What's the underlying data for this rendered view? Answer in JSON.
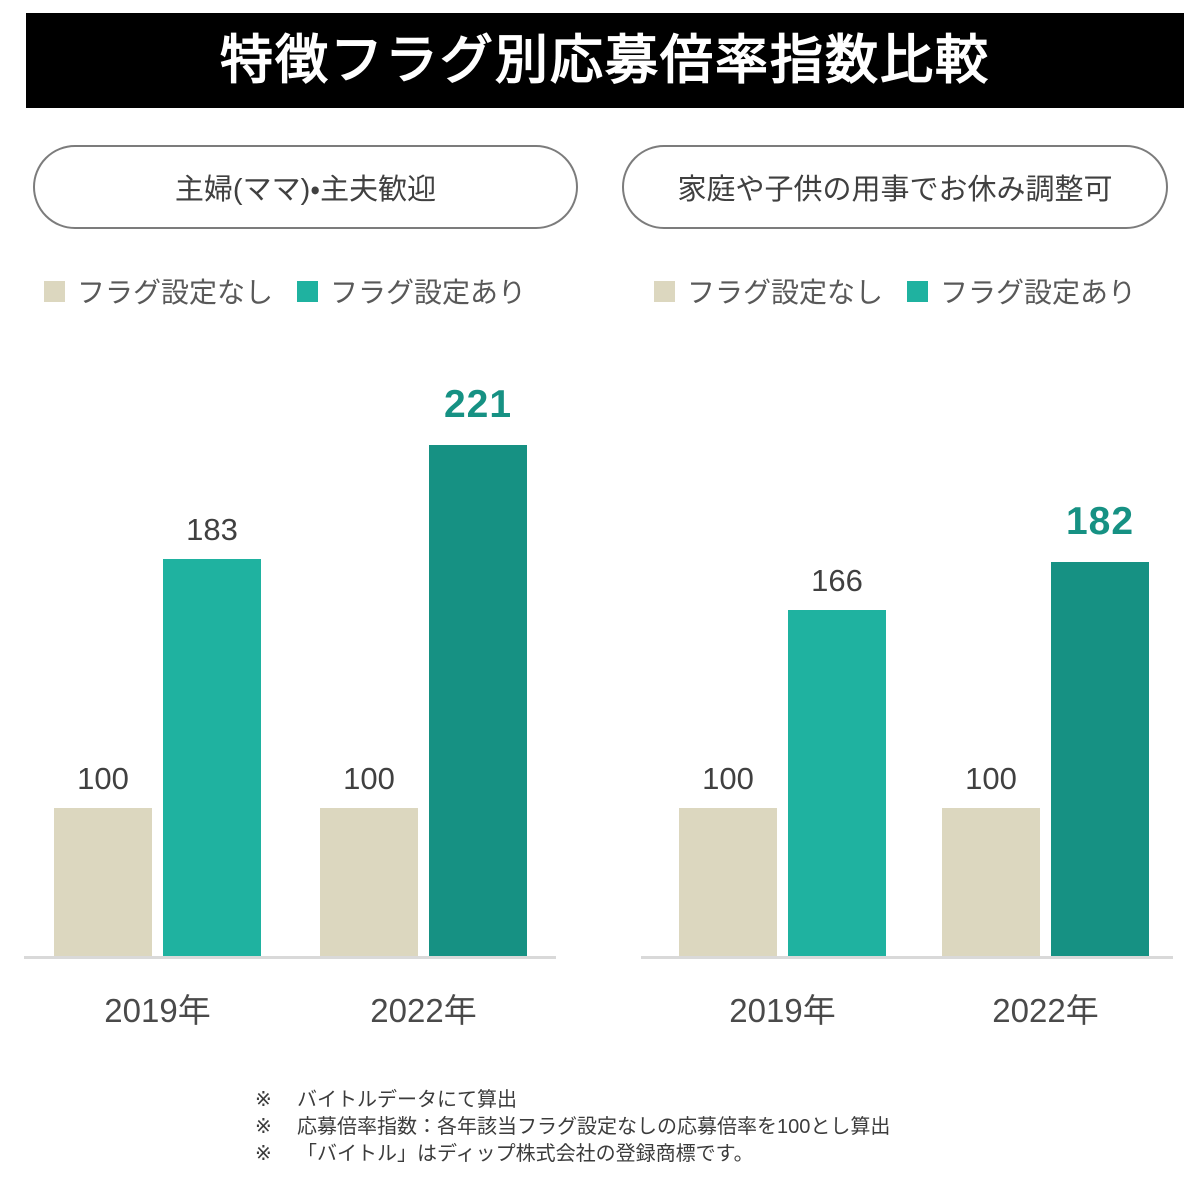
{
  "title": "特徴フラグ別応募倍率指数比較",
  "colors": {
    "banner_bg": "#000000",
    "banner_text": "#ffffff",
    "no_flag_beige": "#dcd7bf",
    "with_flag_teal": "#1fb2a0",
    "with_flag_teal_dark": "#169183",
    "value_label_gray": "#404040",
    "axis_line": "#d9d9d9",
    "pill_border": "#7c7c7c",
    "legend_text": "#595959",
    "footnote_text": "#3c3c3c"
  },
  "legend": {
    "items": [
      {
        "label": "フラグ設定なし",
        "color": "#dcd7bf"
      },
      {
        "label": "フラグ設定あり",
        "color": "#1fb2a0"
      }
    ]
  },
  "chart_data": [
    {
      "type": "bar",
      "title": "主婦(ママ)・主夫歓迎",
      "categories": [
        "2019年",
        "2022年"
      ],
      "series": [
        {
          "name": "フラグ設定なし",
          "values": [
            100,
            100
          ],
          "colors": [
            "#dcd7bf",
            "#dcd7bf"
          ],
          "emphasis": [
            false,
            false
          ]
        },
        {
          "name": "フラグ設定あり",
          "values": [
            183,
            221
          ],
          "colors": [
            "#1fb2a0",
            "#169183"
          ],
          "emphasis": [
            false,
            true
          ]
        }
      ],
      "value_labels_shown": true,
      "value_axis_hidden": true,
      "baseline_value": 50,
      "ylim": [
        50,
        240
      ],
      "grid": false,
      "legend_position": "top-left"
    },
    {
      "type": "bar",
      "title": "家庭や子供の用事でお休み調整可",
      "categories": [
        "2019年",
        "2022年"
      ],
      "series": [
        {
          "name": "フラグ設定なし",
          "values": [
            100,
            100
          ],
          "colors": [
            "#dcd7bf",
            "#dcd7bf"
          ],
          "emphasis": [
            false,
            false
          ]
        },
        {
          "name": "フラグ設定あり",
          "values": [
            166,
            182
          ],
          "colors": [
            "#1fb2a0",
            "#169183"
          ],
          "emphasis": [
            false,
            true
          ]
        }
      ],
      "value_labels_shown": true,
      "value_axis_hidden": true,
      "baseline_value": 50,
      "ylim": [
        50,
        240
      ],
      "grid": false,
      "legend_position": "top-left"
    }
  ],
  "footnotes": [
    {
      "marker": "※",
      "text": "バイトルデータにて算出"
    },
    {
      "marker": "※",
      "text": "応募倍率指数：各年該当フラグ設定なしの応募倍率を100とし算出"
    },
    {
      "marker": "※",
      "text": "「バイトル」はディップ株式会社の登録商標です。"
    }
  ]
}
